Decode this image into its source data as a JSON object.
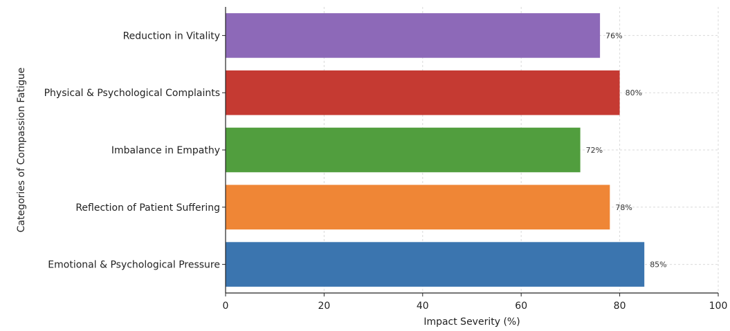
{
  "chart_data": {
    "type": "bar",
    "orientation": "horizontal",
    "categories": [
      "Emotional & Psychological Pressure",
      "Reflection of Patient Suffering",
      "Imbalance in Empathy",
      "Physical & Psychological Complaints",
      "Reduction in Vitality"
    ],
    "values": [
      85,
      78,
      72,
      80,
      76
    ],
    "data_labels": [
      "85%",
      "78%",
      "72%",
      "80%",
      "76%"
    ],
    "colors": [
      "#3b75af",
      "#ef8636",
      "#519e3e",
      "#c53a32",
      "#8d69b8"
    ],
    "title": "",
    "xlabel": "Impact Severity (%)",
    "ylabel": "Categories of Compassion Fatigue",
    "xlim": [
      0,
      100
    ],
    "xticks": [
      "0",
      "20",
      "40",
      "60",
      "80",
      "100"
    ],
    "grid": true,
    "legend": "none"
  }
}
